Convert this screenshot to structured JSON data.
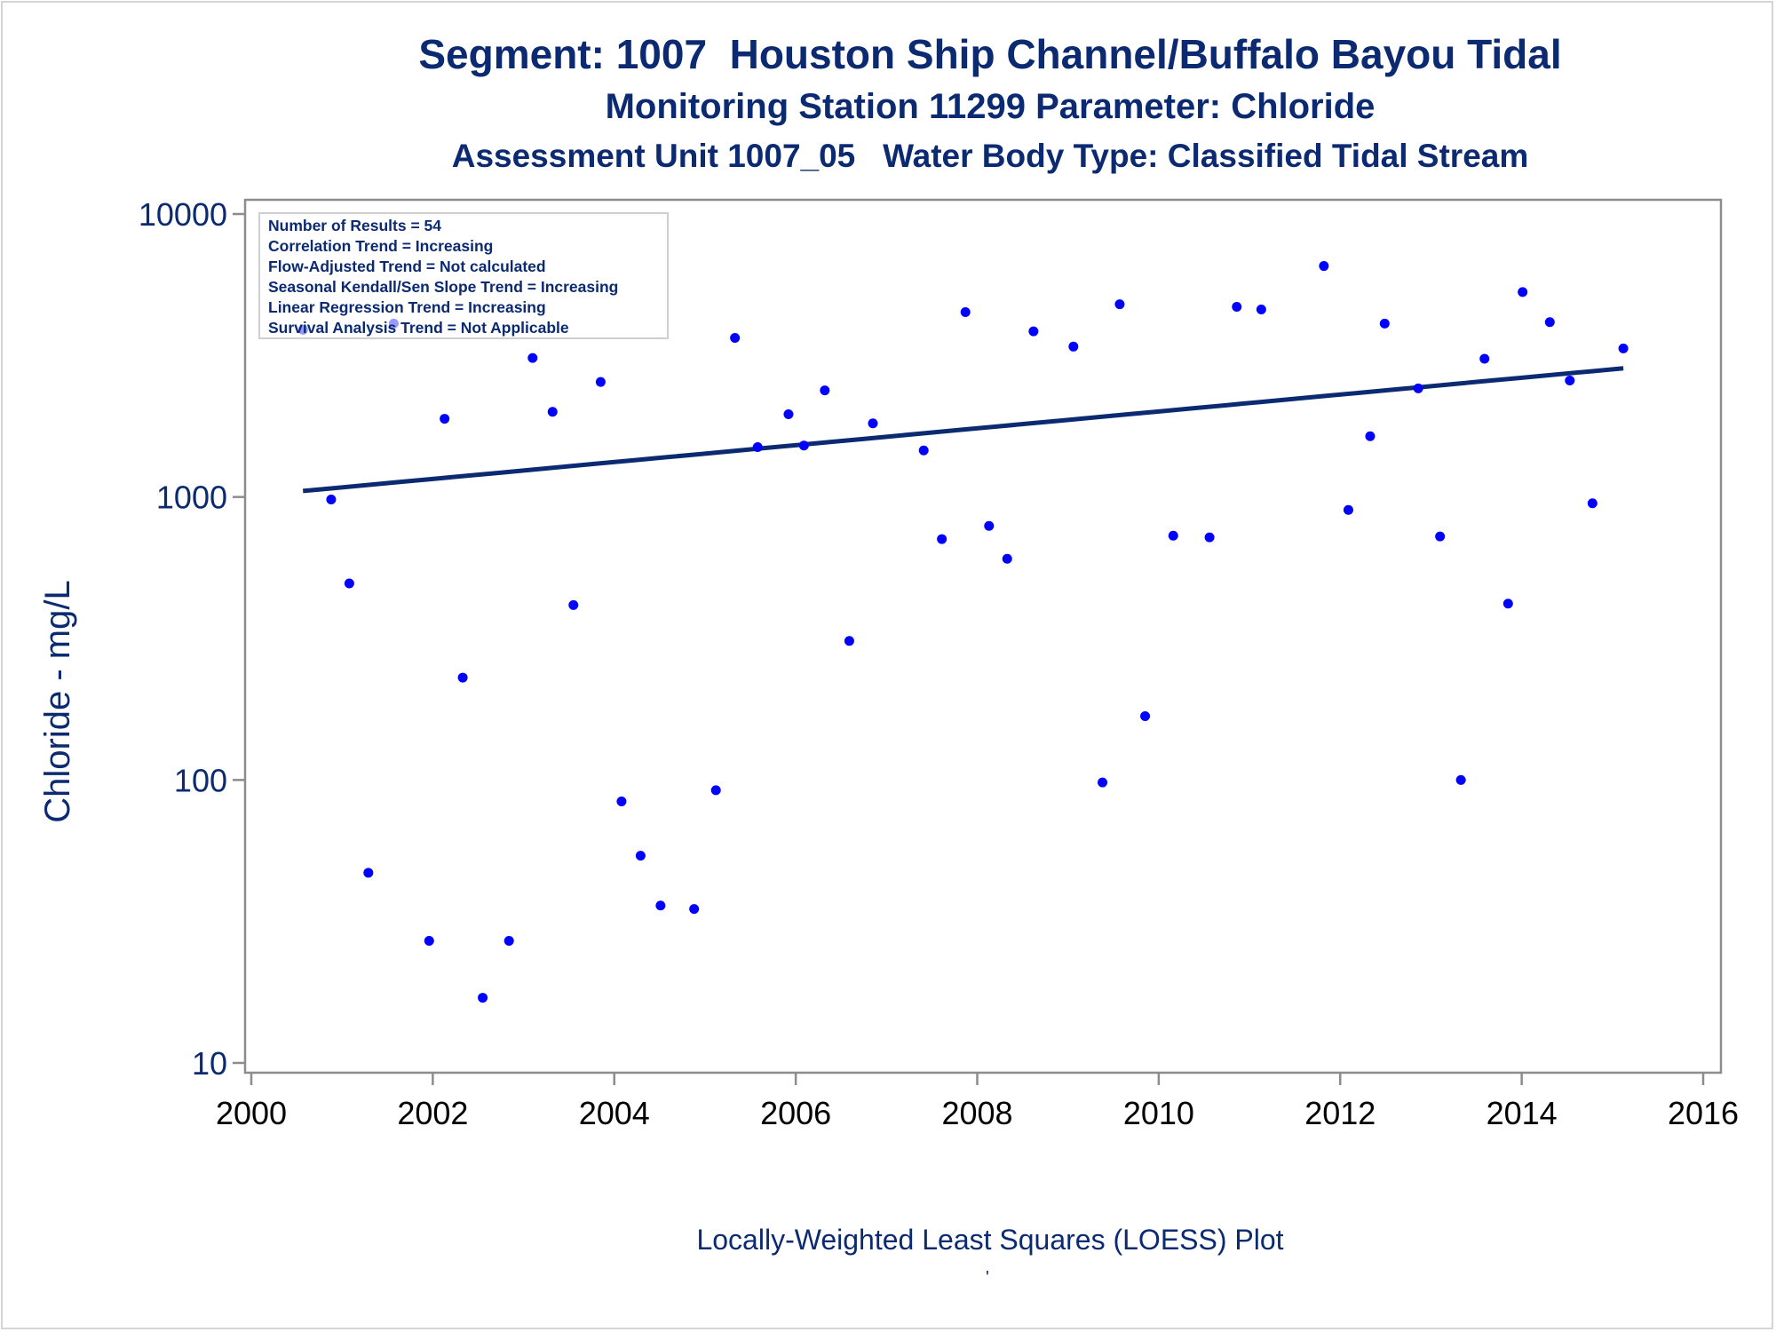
{
  "titles": {
    "line1": "Segment: 1007  Houston Ship Channel/Buffalo Bayou Tidal",
    "line2": "Monitoring Station 11299 Parameter: Chloride",
    "line3": "Assessment Unit 1007_05   Water Body Type: Classified Tidal Stream"
  },
  "footnote": "Locally-Weighted Least Squares (LOESS) Plot",
  "stray_mark": "'",
  "colors": {
    "text": "#0b2a72",
    "points": "#0000ff",
    "trend_line": "#0b2a72",
    "axis": "#8c8c8c"
  },
  "chart_data": {
    "type": "scatter",
    "ylabel": "Chloride - mg/L",
    "xlabel": "",
    "yscale": "log",
    "xlim": [
      2000,
      2016
    ],
    "ylim": [
      10,
      10000
    ],
    "xticks": [
      "2000",
      "2002",
      "2004",
      "2006",
      "2008",
      "2010",
      "2012",
      "2014",
      "2016"
    ],
    "yticks": [
      "10",
      "100",
      "1000",
      "10000"
    ],
    "legend_placement": "top-left",
    "stats_box": [
      "Number of Results = 54",
      "Correlation Trend = Increasing",
      "Flow-Adjusted Trend = Not calculated",
      "Seasonal Kendall/Sen Slope Trend = Increasing",
      "Linear Regression Trend = Increasing",
      "Survival Analysis Trend = Not Applicable"
    ],
    "points": [
      [
        2000.57,
        3900
      ],
      [
        2000.88,
        980
      ],
      [
        2001.08,
        495
      ],
      [
        2001.29,
        47
      ],
      [
        2001.57,
        4100
      ],
      [
        2001.96,
        27
      ],
      [
        2002.13,
        1890
      ],
      [
        2002.33,
        230
      ],
      [
        2002.55,
        17
      ],
      [
        2002.84,
        27
      ],
      [
        2003.1,
        3100
      ],
      [
        2003.32,
        2000
      ],
      [
        2003.55,
        415
      ],
      [
        2003.85,
        2550
      ],
      [
        2004.08,
        84
      ],
      [
        2004.29,
        54
      ],
      [
        2004.51,
        36
      ],
      [
        2004.88,
        35
      ],
      [
        2005.12,
        92
      ],
      [
        2005.33,
        3650
      ],
      [
        2005.58,
        1500
      ],
      [
        2005.92,
        1960
      ],
      [
        2006.09,
        1520
      ],
      [
        2006.32,
        2380
      ],
      [
        2006.59,
        310
      ],
      [
        2006.85,
        1820
      ],
      [
        2007.41,
        1460
      ],
      [
        2007.61,
        710
      ],
      [
        2007.87,
        4500
      ],
      [
        2008.13,
        790
      ],
      [
        2008.33,
        605
      ],
      [
        2008.62,
        3850
      ],
      [
        2009.06,
        3400
      ],
      [
        2009.38,
        98
      ],
      [
        2009.57,
        4800
      ],
      [
        2009.85,
        168
      ],
      [
        2010.16,
        730
      ],
      [
        2010.56,
        720
      ],
      [
        2010.86,
        4700
      ],
      [
        2011.13,
        4600
      ],
      [
        2011.82,
        6550
      ],
      [
        2012.09,
        900
      ],
      [
        2012.33,
        1640
      ],
      [
        2012.49,
        4100
      ],
      [
        2012.86,
        2420
      ],
      [
        2013.1,
        725
      ],
      [
        2013.33,
        100
      ],
      [
        2013.59,
        3080
      ],
      [
        2013.85,
        420
      ],
      [
        2014.01,
        5300
      ],
      [
        2014.31,
        4150
      ],
      [
        2014.53,
        2580
      ],
      [
        2014.78,
        950
      ],
      [
        2015.12,
        3350
      ]
    ],
    "trend_line": {
      "x": [
        2000.57,
        2015.12
      ],
      "y": [
        1050,
        2850
      ]
    }
  }
}
